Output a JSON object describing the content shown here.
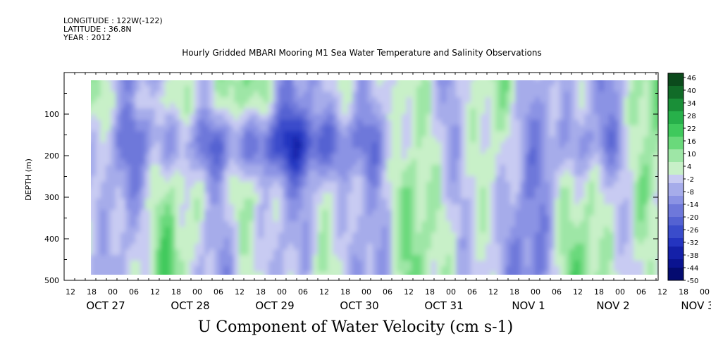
{
  "header": {
    "longitude": "LONGITUDE : 122W(-122)",
    "latitude": "LATITUDE : 36.8N",
    "year": "YEAR : 2012"
  },
  "chart_data": {
    "type": "heatmap",
    "title": "Hourly Gridded MBARI Mooring M1 Sea Water Temperature and Salinity Observations",
    "xlabel": "U Component of Water Velocity (cm s-1)",
    "ylabel": "DEPTH (m)",
    "ylim": [
      500,
      0
    ],
    "y_ticks": [
      100,
      200,
      300,
      400,
      500
    ],
    "hour_ticks": [
      "12",
      "18",
      "00",
      "06",
      "12",
      "18",
      "00",
      "06",
      "12",
      "18",
      "00",
      "06",
      "12",
      "18",
      "00",
      "06",
      "12",
      "18",
      "00",
      "06",
      "12",
      "18",
      "00",
      "06",
      "12",
      "18",
      "00",
      "06",
      "12",
      "18",
      "00",
      "06"
    ],
    "date_labels": [
      "OCT 27",
      "OCT 28",
      "OCT 29",
      "OCT 30",
      "OCT 31",
      "NOV  1",
      "NOV  2",
      "NOV  3"
    ],
    "data_depth_range_m": [
      20,
      485
    ],
    "data_time_range": [
      "OCT 27 18:00",
      "NOV 3 12:00"
    ],
    "colorbar": {
      "levels": [
        48,
        46,
        44,
        42,
        40,
        38,
        36,
        34,
        32,
        30,
        28,
        26,
        24,
        22,
        20,
        18,
        16,
        14,
        12,
        10,
        8,
        6,
        4,
        2,
        0,
        -2,
        -4,
        -6,
        -8,
        -10,
        -12,
        -14,
        -16,
        -18,
        -20,
        -22,
        -24,
        -26,
        -28,
        -30,
        -32,
        -34,
        -36,
        -38,
        -40,
        -42,
        -44,
        -46,
        -48,
        -50
      ],
      "labels": [
        "46",
        "40",
        "34",
        "28",
        "22",
        "16",
        "10",
        "4",
        "-2",
        "-8",
        "-14",
        "-20",
        "-26",
        "-32",
        "-38",
        "-44",
        "-50"
      ],
      "positive_colors": [
        "#0b4a1c",
        "#116b28",
        "#1a8f38",
        "#27b04a",
        "#3fc95c",
        "#6ad97b",
        "#9ee6a6",
        "#c8f0c8"
      ],
      "negative_colors": [
        "#c8cbf2",
        "#a6acea",
        "#8b93e4",
        "#6e78da",
        "#5462d2",
        "#3a4ccb",
        "#2434c0",
        "#1420a8",
        "#0a1390",
        "#040b70"
      ]
    },
    "field_description": "Alternating vertical bands of positive (green) and negative (blue) eastward velocity, with a strong negative core near 150-250 m on OCT 29-31"
  }
}
